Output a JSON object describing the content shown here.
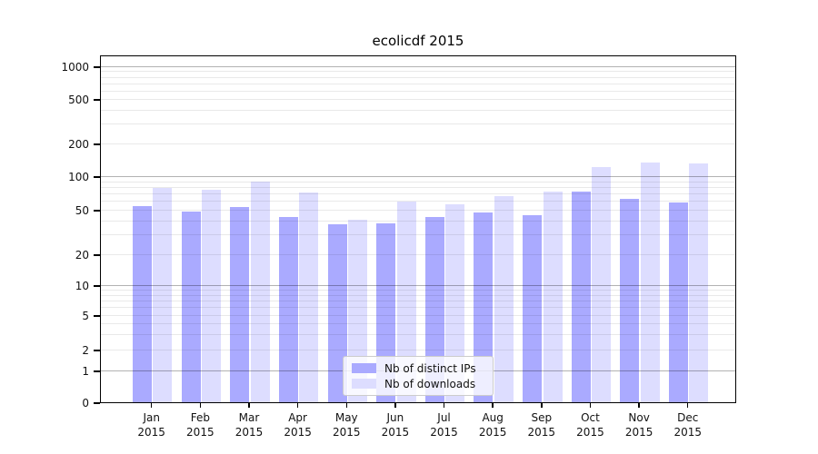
{
  "title": "ecolicdf 2015",
  "legend": {
    "items": [
      {
        "label": "Nb of distinct IPs",
        "color": "#aaaaff"
      },
      {
        "label": "Nb of downloads",
        "color": "#ddddff"
      }
    ]
  },
  "chart_data": {
    "type": "bar",
    "title": "ecolicdf 2015",
    "categories": [
      "Jan 2015",
      "Feb 2015",
      "Mar 2015",
      "Apr 2015",
      "May 2015",
      "Jun 2015",
      "Jul 2015",
      "Aug 2015",
      "Sep 2015",
      "Oct 2015",
      "Nov 2015",
      "Dec 2015"
    ],
    "month_labels": [
      "Jan",
      "Feb",
      "Mar",
      "Apr",
      "May",
      "Jun",
      "Jul",
      "Aug",
      "Sep",
      "Oct",
      "Nov",
      "Dec"
    ],
    "year_label": "2015",
    "series": [
      {
        "name": "Nb of distinct IPs",
        "color": "#aaaaff",
        "values": [
          55,
          50,
          54,
          44,
          38,
          39,
          44,
          49,
          46,
          75,
          65,
          60
        ]
      },
      {
        "name": "Nb of downloads",
        "color": "#ddddff",
        "values": [
          80,
          78,
          92,
          73,
          42,
          61,
          58,
          68,
          75,
          125,
          137,
          136
        ]
      }
    ],
    "y_axis": {
      "scale": "symlog",
      "tick_values": [
        0,
        1,
        2,
        5,
        10,
        20,
        50,
        100,
        200,
        500,
        1000
      ],
      "tick_labels": [
        "0",
        "1",
        "2",
        "5",
        "10",
        "20",
        "50",
        "100",
        "200",
        "500",
        "1000"
      ],
      "minor_grid_values": [
        2,
        3,
        4,
        5,
        6,
        7,
        8,
        9,
        20,
        30,
        40,
        50,
        60,
        70,
        80,
        90,
        200,
        300,
        400,
        500,
        600,
        700,
        800,
        900
      ],
      "major_grid_values": [
        1,
        10,
        100,
        1000
      ]
    },
    "xlabel": "",
    "ylabel": "",
    "ylim": [
      0,
      1200
    ],
    "grid": "horizontal",
    "legend_position": "inside-bottom-center"
  }
}
